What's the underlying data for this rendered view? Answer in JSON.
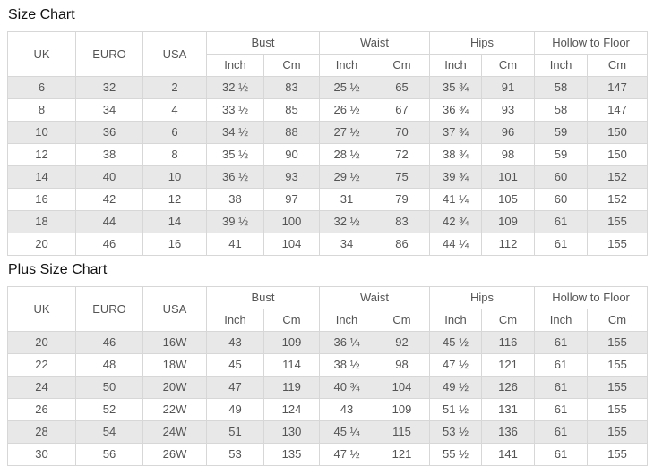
{
  "theme": {
    "background": "#ffffff",
    "border_color": "#d7d7d7",
    "stripe_color": "#e8e8e8",
    "text_color": "#545454",
    "title_color": "#111111"
  },
  "size_chart": {
    "title": "Size Chart",
    "header": {
      "uk": "UK",
      "euro": "EURO",
      "usa": "USA",
      "bust": "Bust",
      "waist": "Waist",
      "hips": "Hips",
      "hollow_to_floor": "Hollow to Floor",
      "inch": "Inch",
      "cm": "Cm"
    },
    "rows": [
      [
        "6",
        "32",
        "2",
        "32 ½",
        "83",
        "25 ½",
        "65",
        "35 ¾",
        "91",
        "58",
        "147"
      ],
      [
        "8",
        "34",
        "4",
        "33 ½",
        "85",
        "26 ½",
        "67",
        "36 ¾",
        "93",
        "58",
        "147"
      ],
      [
        "10",
        "36",
        "6",
        "34 ½",
        "88",
        "27 ½",
        "70",
        "37 ¾",
        "96",
        "59",
        "150"
      ],
      [
        "12",
        "38",
        "8",
        "35 ½",
        "90",
        "28 ½",
        "72",
        "38 ¾",
        "98",
        "59",
        "150"
      ],
      [
        "14",
        "40",
        "10",
        "36 ½",
        "93",
        "29 ½",
        "75",
        "39 ¾",
        "101",
        "60",
        "152"
      ],
      [
        "16",
        "42",
        "12",
        "38",
        "97",
        "31",
        "79",
        "41 ¼",
        "105",
        "60",
        "152"
      ],
      [
        "18",
        "44",
        "14",
        "39 ½",
        "100",
        "32 ½",
        "83",
        "42 ¾",
        "109",
        "61",
        "155"
      ],
      [
        "20",
        "46",
        "16",
        "41",
        "104",
        "34",
        "86",
        "44 ¼",
        "112",
        "61",
        "155"
      ]
    ]
  },
  "plus_size_chart": {
    "title": "Plus Size Chart",
    "header": {
      "uk": "UK",
      "euro": "EURO",
      "usa": "USA",
      "bust": "Bust",
      "waist": "Waist",
      "hips": "Hips",
      "hollow_to_floor": "Hollow to Floor",
      "inch": "Inch",
      "cm": "Cm"
    },
    "rows": [
      [
        "20",
        "46",
        "16W",
        "43",
        "109",
        "36 ¼",
        "92",
        "45 ½",
        "116",
        "61",
        "155"
      ],
      [
        "22",
        "48",
        "18W",
        "45",
        "114",
        "38 ½",
        "98",
        "47 ½",
        "121",
        "61",
        "155"
      ],
      [
        "24",
        "50",
        "20W",
        "47",
        "119",
        "40 ¾",
        "104",
        "49 ½",
        "126",
        "61",
        "155"
      ],
      [
        "26",
        "52",
        "22W",
        "49",
        "124",
        "43",
        "109",
        "51 ½",
        "131",
        "61",
        "155"
      ],
      [
        "28",
        "54",
        "24W",
        "51",
        "130",
        "45 ¼",
        "115",
        "53 ½",
        "136",
        "61",
        "155"
      ],
      [
        "30",
        "56",
        "26W",
        "53",
        "135",
        "47 ½",
        "121",
        "55 ½",
        "141",
        "61",
        "155"
      ]
    ]
  }
}
